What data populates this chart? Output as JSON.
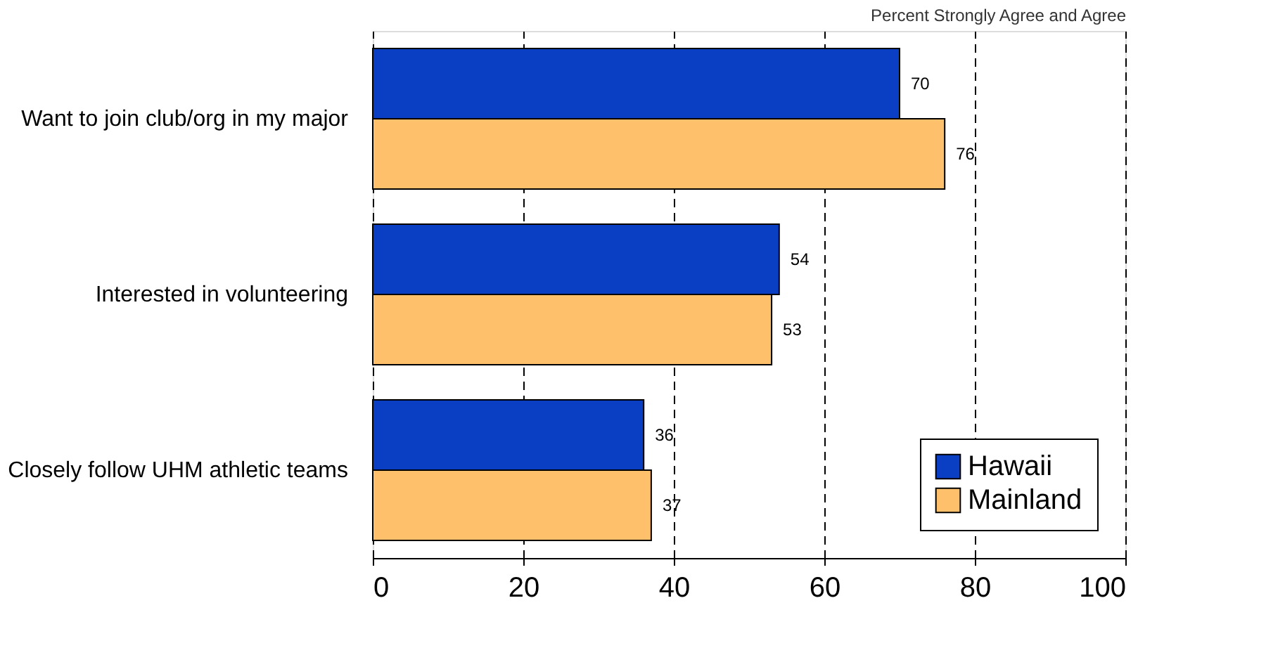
{
  "chart_data": {
    "type": "bar",
    "orientation": "horizontal",
    "title": "Percent Strongly Agree and Agree",
    "categories": [
      "Want to join club/org in my major",
      "Interested in volunteering",
      "Closely follow UHM athletic teams"
    ],
    "series": [
      {
        "name": "Hawaii",
        "color": "#0a3fc4",
        "values": [
          70,
          54,
          36
        ]
      },
      {
        "name": "Mainland",
        "color": "#ffc06b",
        "values": [
          76,
          53,
          37
        ]
      }
    ],
    "xlim": [
      0,
      100
    ],
    "xticks": [
      0,
      20,
      40,
      60,
      80,
      100
    ],
    "grid": "x",
    "legend": "bottom right",
    "data_labels": true
  }
}
